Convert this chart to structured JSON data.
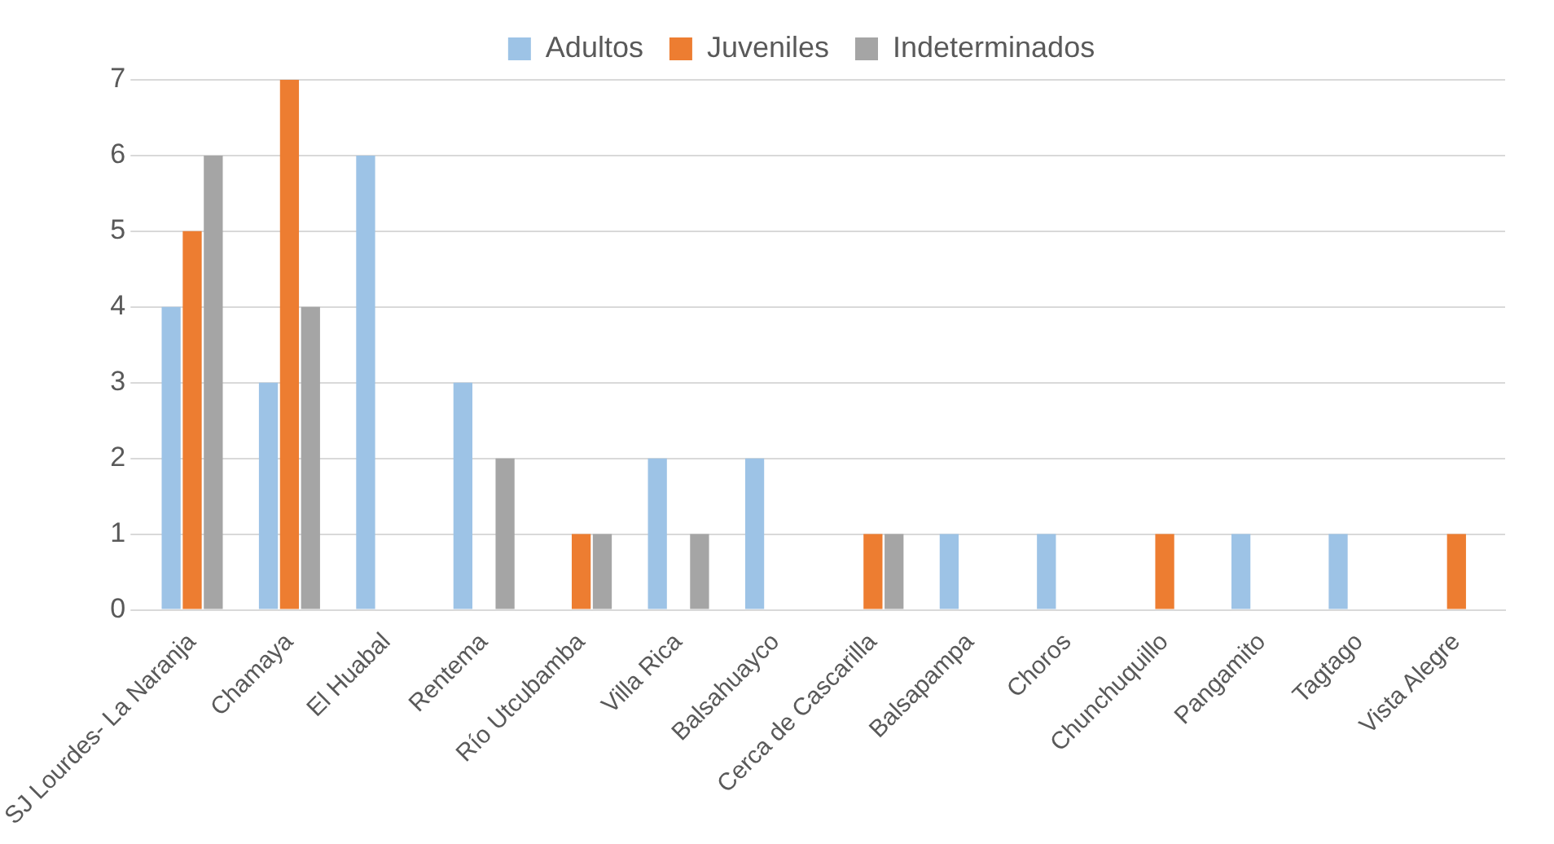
{
  "chart_data": {
    "type": "bar",
    "categories": [
      "SJ Lourdes- La Naranja",
      "Chamaya",
      "El Huabal",
      "Rentema",
      "Río Utcubamba",
      "Villa Rica",
      "Balsahuayco",
      "Cerca de Cascarilla",
      "Balsapampa",
      "Choros",
      "Chunchuquillo",
      "Pangamito",
      "Tagtago",
      "Vista Alegre"
    ],
    "series": [
      {
        "name": "Adultos",
        "color": "#9dc3e6",
        "values": [
          4,
          3,
          6,
          3,
          0,
          2,
          2,
          0,
          1,
          1,
          0,
          1,
          1,
          0
        ]
      },
      {
        "name": "Juveniles",
        "color": "#ed7d31",
        "values": [
          5,
          7,
          0,
          0,
          1,
          0,
          0,
          1,
          0,
          0,
          1,
          0,
          0,
          1
        ]
      },
      {
        "name": "Indeterminados",
        "color": "#a5a5a5",
        "values": [
          6,
          4,
          0,
          2,
          1,
          1,
          0,
          1,
          0,
          0,
          0,
          0,
          0,
          0
        ]
      }
    ],
    "ylim": [
      0,
      7
    ],
    "yticks": [
      0,
      1,
      2,
      3,
      4,
      5,
      6,
      7
    ],
    "grid": "y",
    "legend": "top"
  }
}
